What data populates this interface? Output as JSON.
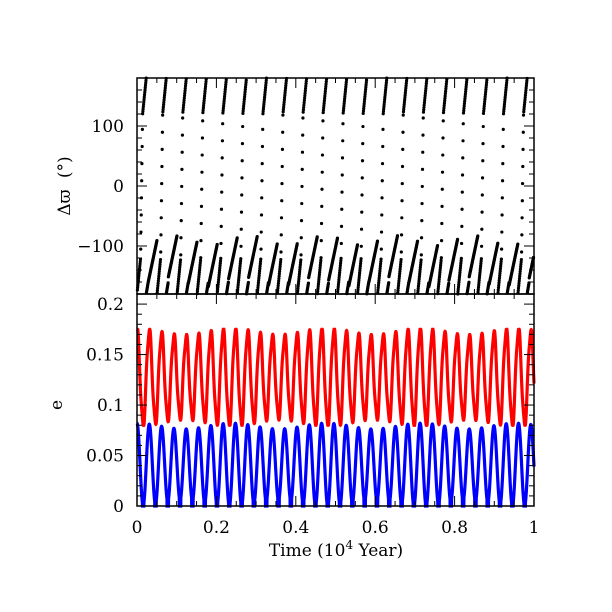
{
  "chart_data": [
    {
      "type": "scatter",
      "panel": "top",
      "xlabel": "",
      "ylabel": "Δϖ (°)",
      "ylabel_parts": {
        "symbol": "Δϖ",
        "unit": "(°)"
      },
      "xlim": [
        0,
        1
      ],
      "ylim": [
        -180,
        180
      ],
      "yticks": [
        -100,
        0,
        100
      ],
      "ytick_labels": [
        "−100",
        "0",
        "100"
      ],
      "grid": false,
      "series": [
        {
          "color": "#000000",
          "description_values": {
            "period_in_x": 0.05,
            "wraps": true
          },
          "x": [
            0.0,
            0.005,
            0.01,
            0.015,
            0.02,
            0.025,
            0.03,
            0.035,
            0.04,
            0.045,
            0.05,
            0.055,
            0.06,
            0.065,
            0.07,
            0.075,
            0.08,
            0.085,
            0.09,
            0.095,
            0.1
          ],
          "y": [
            -170,
            -120,
            -40,
            60,
            130,
            175,
            -175,
            -120,
            -20,
            80,
            150,
            -178,
            -130,
            -60,
            40,
            120,
            170,
            -172,
            -110,
            -10,
            90
          ]
        }
      ]
    },
    {
      "type": "line",
      "panel": "bottom",
      "xlabel": "Time (10⁴ Year)",
      "xlabel_parts": {
        "text": "Time (10",
        "sup": "4",
        "tail": " Year)"
      },
      "ylabel": "e",
      "xlim": [
        0,
        1
      ],
      "ylim": [
        0,
        0.21
      ],
      "xticks": [
        0,
        0.2,
        0.4,
        0.6,
        0.8,
        1
      ],
      "xtick_labels": [
        "0",
        "0.2",
        "0.4",
        "0.6",
        "0.8",
        "1"
      ],
      "yticks": [
        0,
        0.05,
        0.1,
        0.15,
        0.2
      ],
      "ytick_labels": [
        "0",
        "0.05",
        "0.1",
        "0.15",
        "0.2"
      ],
      "grid": false,
      "series": [
        {
          "color": "#ff0000",
          "min": 0.08,
          "max": 0.175,
          "period": 0.031
        },
        {
          "color": "#0000ff",
          "min": 0.0,
          "max": 0.082,
          "period": 0.031
        }
      ]
    }
  ]
}
